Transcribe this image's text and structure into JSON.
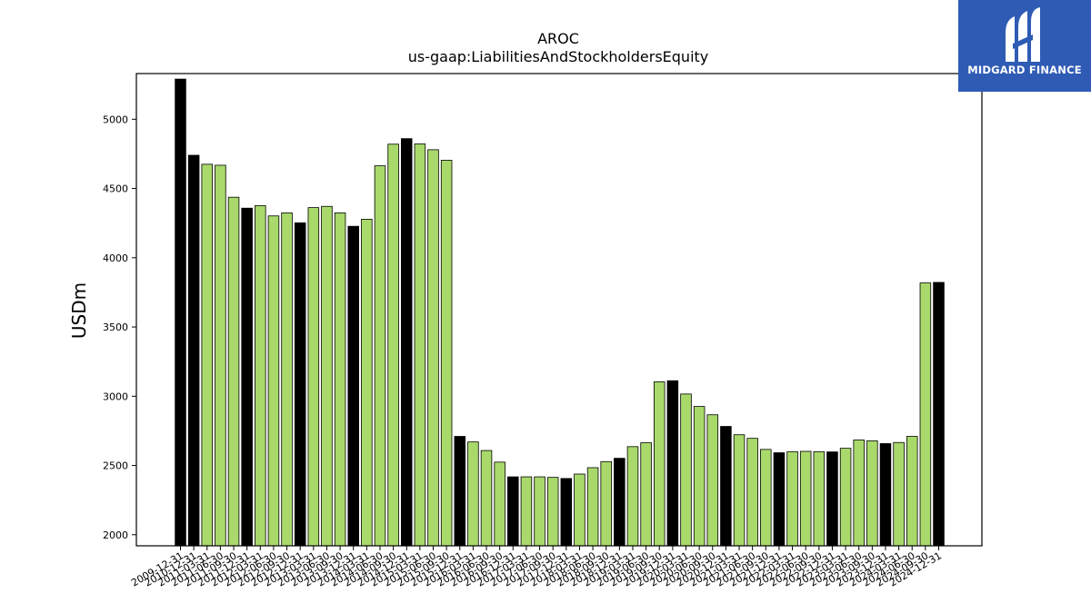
{
  "logo": {
    "text": "MIDGARD FINANCE",
    "icon": "midgard-logo-icon",
    "bg": "#2f5bb4"
  },
  "chart_data": {
    "type": "bar",
    "title": "AROC",
    "subtitle": "us-gaap:LiabilitiesAndStockholdersEquity",
    "ylabel": "USDm",
    "xlabel": "",
    "ylim": [
      1920,
      5330
    ],
    "yticks": [
      2000,
      2500,
      3000,
      3500,
      4000,
      4500,
      5000
    ],
    "grid": false,
    "legend": "none",
    "colors": {
      "annual": "#000000",
      "quarterly": "#a9d96b",
      "edge": "#000000"
    },
    "categories": [
      "2009-12-31",
      "2010-12-31",
      "2011-03-31",
      "2011-06-30",
      "2011-09-30",
      "2011-12-31",
      "2012-03-31",
      "2012-06-30",
      "2012-09-30",
      "2012-12-31",
      "2013-03-31",
      "2013-06-30",
      "2013-09-30",
      "2013-12-31",
      "2014-03-31",
      "2014-06-30",
      "2014-09-30",
      "2014-12-31",
      "2015-03-31",
      "2015-06-30",
      "2015-09-30",
      "2015-12-31",
      "2016-03-31",
      "2016-06-30",
      "2016-09-30",
      "2016-12-31",
      "2017-03-31",
      "2017-06-30",
      "2017-09-30",
      "2017-12-31",
      "2018-03-31",
      "2018-06-30",
      "2018-09-30",
      "2018-12-31",
      "2019-03-31",
      "2019-06-30",
      "2019-09-30",
      "2019-12-31",
      "2020-03-31",
      "2020-06-30",
      "2020-09-30",
      "2020-12-31",
      "2021-03-31",
      "2021-06-30",
      "2021-09-30",
      "2021-12-31",
      "2022-03-31",
      "2022-06-30",
      "2022-09-30",
      "2022-12-31",
      "2023-03-31",
      "2023-06-30",
      "2023-09-30",
      "2023-12-31",
      "2024-03-31",
      "2024-06-30",
      "2024-09-30",
      "2024-12-31"
    ],
    "values": [
      5290,
      4740,
      4675,
      4668,
      4437,
      4358,
      4376,
      4302,
      4324,
      4252,
      4362,
      4371,
      4324,
      4227,
      4278,
      4664,
      4820,
      4860,
      4822,
      4780,
      4704,
      2710,
      2670,
      2608,
      2524,
      2418,
      2418,
      2418,
      2414,
      2406,
      2438,
      2484,
      2528,
      2552,
      2636,
      2664,
      3104,
      3112,
      3016,
      2926,
      2866,
      2782,
      2722,
      2696,
      2616,
      2592,
      2600,
      2602,
      2600,
      2598,
      2624,
      2684,
      2678,
      2658,
      2666,
      2710,
      3818,
      3822
    ],
    "annual": [
      true,
      true,
      false,
      false,
      false,
      true,
      false,
      false,
      false,
      true,
      false,
      false,
      false,
      true,
      false,
      false,
      false,
      true,
      false,
      false,
      false,
      true,
      false,
      false,
      false,
      true,
      false,
      false,
      false,
      true,
      false,
      false,
      false,
      true,
      false,
      false,
      false,
      true,
      false,
      false,
      false,
      true,
      false,
      false,
      false,
      true,
      false,
      false,
      false,
      true,
      false,
      false,
      false,
      true,
      false,
      false,
      false,
      true
    ]
  }
}
